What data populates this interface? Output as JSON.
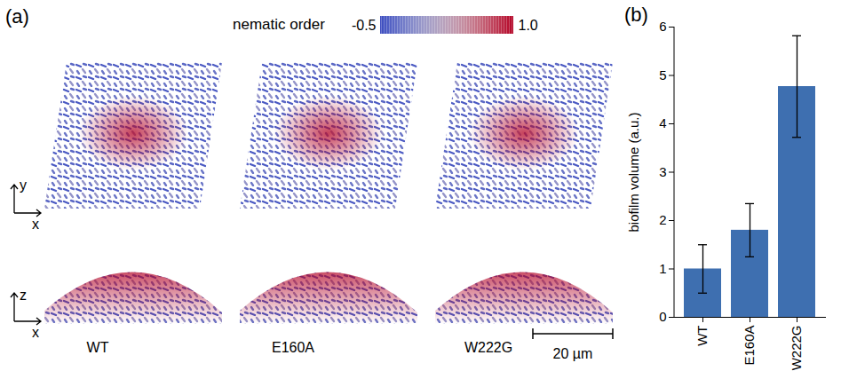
{
  "chart_data": {
    "type": "bar",
    "panel_label": "(b)",
    "categories": [
      "WT",
      "E160A",
      "W222G"
    ],
    "values": [
      1.0,
      1.8,
      4.77
    ],
    "errors": [
      0.5,
      0.55,
      1.05
    ],
    "y_label": "biofilm volume (a.u.)",
    "color": "#3e6fb0",
    "ylim": [
      0,
      6
    ],
    "yticks": [
      0,
      1,
      2,
      3,
      4,
      5,
      6
    ],
    "grid": false
  },
  "panel_a": {
    "panel_label": "(a)",
    "colorbar": {
      "label": "nematic order",
      "range": [
        -0.5,
        1.0
      ],
      "ticks": [
        -0.5,
        {
          "value": 1.0,
          "label": "1.0"
        }
      ],
      "colors": [
        "#3b4cc0",
        "#dddcdc",
        "#b40426"
      ]
    },
    "strains": [
      "WT",
      "E160A",
      "W222G"
    ],
    "top_view_axes": [
      "x",
      "y"
    ],
    "side_view_axes": [
      "x",
      "z"
    ],
    "scale_bar": "20 µm"
  }
}
